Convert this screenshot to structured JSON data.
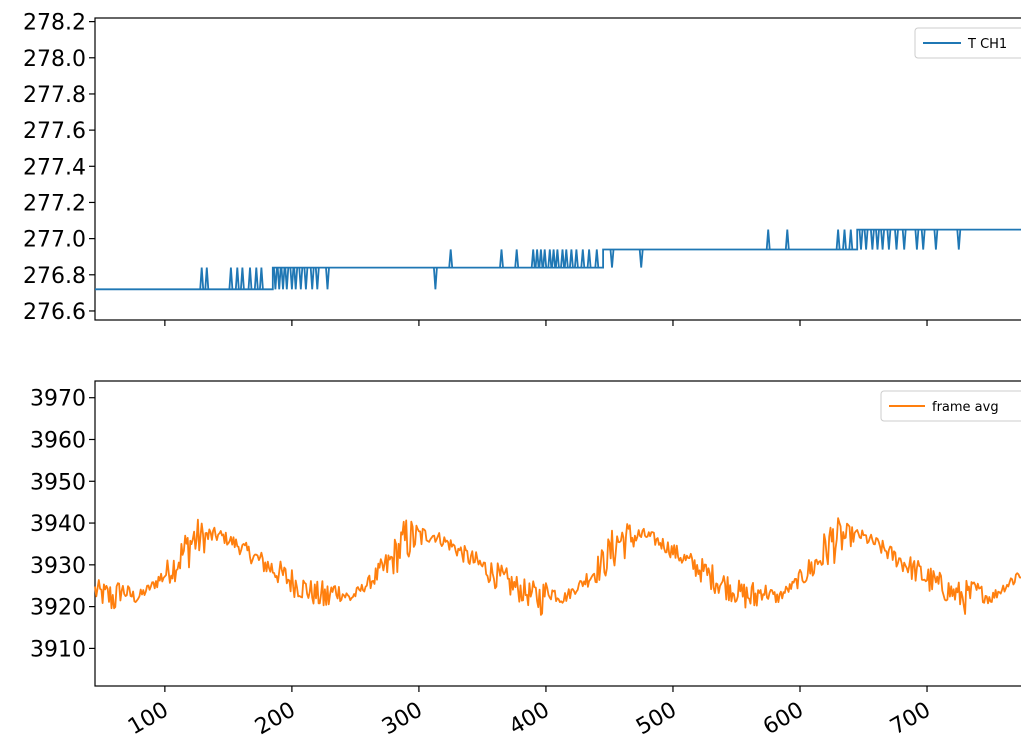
{
  "chart_data": [
    {
      "type": "line",
      "xlim": [
        45,
        785
      ],
      "ylim": [
        276.55,
        278.22
      ],
      "yticks": [
        "276.6",
        "276.8",
        "277.0",
        "277.2",
        "277.4",
        "277.6",
        "277.8",
        "278.0",
        "278.2"
      ],
      "xticks": [
        "100",
        "200",
        "300",
        "400",
        "500",
        "600",
        "700"
      ],
      "xticks_visible": false,
      "legend_position": "upper-right",
      "series": [
        {
          "name": "T CH1",
          "color": "#1f77b4",
          "baseline_levels": [
            {
              "x_start": 45,
              "x_end": 185,
              "value": 276.72
            },
            {
              "x_start": 185,
              "x_end": 445,
              "value": 276.84
            },
            {
              "x_start": 445,
              "x_end": 645,
              "value": 276.94
            },
            {
              "x_start": 645,
              "x_end": 785,
              "value": 277.05
            }
          ],
          "spikes": [
            {
              "x": 129,
              "value": 276.84
            },
            {
              "x": 133,
              "value": 276.84
            },
            {
              "x": 152,
              "value": 276.84
            },
            {
              "x": 157,
              "value": 276.84
            },
            {
              "x": 161,
              "value": 276.84
            },
            {
              "x": 167,
              "value": 276.84
            },
            {
              "x": 172,
              "value": 276.84
            },
            {
              "x": 176,
              "value": 276.84
            },
            {
              "x": 187,
              "value": 276.72
            },
            {
              "x": 190,
              "value": 276.72
            },
            {
              "x": 193,
              "value": 276.72
            },
            {
              "x": 196,
              "value": 276.72
            },
            {
              "x": 200,
              "value": 276.72
            },
            {
              "x": 203,
              "value": 276.72
            },
            {
              "x": 207,
              "value": 276.72
            },
            {
              "x": 211,
              "value": 276.72
            },
            {
              "x": 216,
              "value": 276.72
            },
            {
              "x": 220,
              "value": 276.72
            },
            {
              "x": 228,
              "value": 276.72
            },
            {
              "x": 313,
              "value": 276.72
            },
            {
              "x": 325,
              "value": 276.94
            },
            {
              "x": 365,
              "value": 276.94
            },
            {
              "x": 377,
              "value": 276.94
            },
            {
              "x": 390,
              "value": 276.94
            },
            {
              "x": 393,
              "value": 276.94
            },
            {
              "x": 396,
              "value": 276.94
            },
            {
              "x": 399,
              "value": 276.94
            },
            {
              "x": 403,
              "value": 276.94
            },
            {
              "x": 406,
              "value": 276.94
            },
            {
              "x": 409,
              "value": 276.94
            },
            {
              "x": 413,
              "value": 276.94
            },
            {
              "x": 416,
              "value": 276.94
            },
            {
              "x": 420,
              "value": 276.94
            },
            {
              "x": 424,
              "value": 276.94
            },
            {
              "x": 429,
              "value": 276.94
            },
            {
              "x": 434,
              "value": 276.94
            },
            {
              "x": 440,
              "value": 276.94
            },
            {
              "x": 452,
              "value": 276.84
            },
            {
              "x": 475,
              "value": 276.84
            },
            {
              "x": 575,
              "value": 277.05
            },
            {
              "x": 590,
              "value": 277.05
            },
            {
              "x": 630,
              "value": 277.05
            },
            {
              "x": 635,
              "value": 277.05
            },
            {
              "x": 640,
              "value": 277.05
            },
            {
              "x": 648,
              "value": 276.94
            },
            {
              "x": 652,
              "value": 276.94
            },
            {
              "x": 657,
              "value": 276.94
            },
            {
              "x": 661,
              "value": 276.94
            },
            {
              "x": 665,
              "value": 276.94
            },
            {
              "x": 670,
              "value": 276.94
            },
            {
              "x": 676,
              "value": 276.94
            },
            {
              "x": 682,
              "value": 276.94
            },
            {
              "x": 692,
              "value": 276.94
            },
            {
              "x": 697,
              "value": 276.94
            },
            {
              "x": 707,
              "value": 276.94
            },
            {
              "x": 725,
              "value": 276.94
            }
          ]
        }
      ]
    },
    {
      "type": "line",
      "xlim": [
        45,
        785
      ],
      "ylim": [
        3901,
        3974
      ],
      "yticks": [
        "3910",
        "3920",
        "3930",
        "3940",
        "3950",
        "3960",
        "3970"
      ],
      "xticks": [
        "100",
        "200",
        "300",
        "400",
        "500",
        "600",
        "700"
      ],
      "legend_position": "upper-right",
      "series": [
        {
          "name": "frame avg",
          "color": "#ff7f0e",
          "period": 168,
          "envelope": {
            "x": [
              0,
              6,
              18,
              30,
              48,
              62,
              78,
              84,
              96,
              110,
              125,
              140,
              158,
              168
            ],
            "value": [
              3922,
              3924,
              3922,
              3925,
              3930,
              3936,
              3937,
              3937,
              3935,
              3932,
              3929,
              3926,
              3923,
              3922
            ]
          },
          "noise_amplitude": [
            4.5,
            2.5,
            1.5,
            1.2,
            4,
            6,
            2,
            1.5,
            1.8,
            2.2,
            3,
            3.5,
            3,
            4.5
          ],
          "phase_start_x": 60
        }
      ]
    }
  ]
}
